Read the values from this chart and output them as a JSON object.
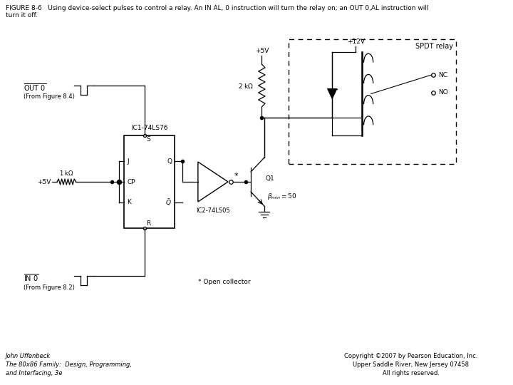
{
  "title_text": "FIGURE 8-6   Using device-select pulses to control a relay. An IN AL, 0 instruction will turn the relay on; an OUT 0,AL instruction will\nturn it off.",
  "footer_left": "John Uffenbeck\nThe 80x86 Family:  Design, Programming,\nand Interfacing, 3e",
  "footer_right": "Copyright ©2007 by Pearson Education, Inc.\nUpper Saddle River, New Jersey 07458\nAll rights reserved.",
  "bg_color": "#ffffff",
  "line_color": "#000000",
  "title_fontsize": 6.5,
  "footer_fontsize": 6.0
}
